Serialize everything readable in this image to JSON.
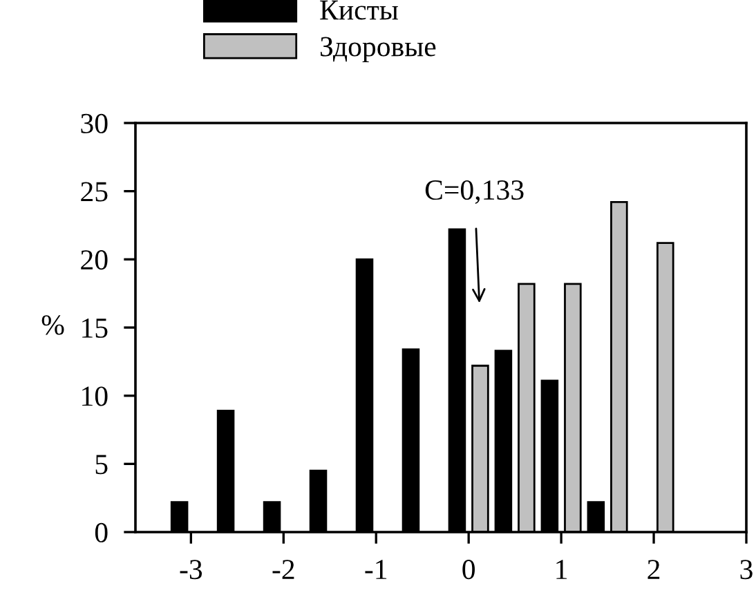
{
  "chart_data": {
    "type": "bar",
    "ylabel": "%",
    "series": [
      {
        "name": "Кисты",
        "color": "#000000",
        "x": [
          -3.125,
          -2.625,
          -2.125,
          -1.625,
          -1.125,
          -0.625,
          -0.125,
          0.375,
          0.875,
          1.375
        ],
        "values": [
          2.2,
          8.9,
          2.2,
          4.5,
          20.0,
          13.4,
          22.2,
          13.3,
          11.1,
          2.2
        ]
      },
      {
        "name": "Здоровые",
        "color": "#c0c0c0",
        "x": [
          0.125,
          0.625,
          1.125,
          1.625,
          2.125
        ],
        "values": [
          12.2,
          18.2,
          18.2,
          24.2,
          21.2
        ]
      }
    ],
    "xlim": [
      -3.6,
      3
    ],
    "xticks": [
      -3,
      -2,
      -1,
      0,
      1,
      2,
      3
    ],
    "ylim": [
      0,
      30
    ],
    "yticks": [
      0,
      5,
      10,
      15,
      20,
      25,
      30
    ],
    "annotations": [
      "C=0,133"
    ],
    "legend": "top",
    "grid": false
  }
}
